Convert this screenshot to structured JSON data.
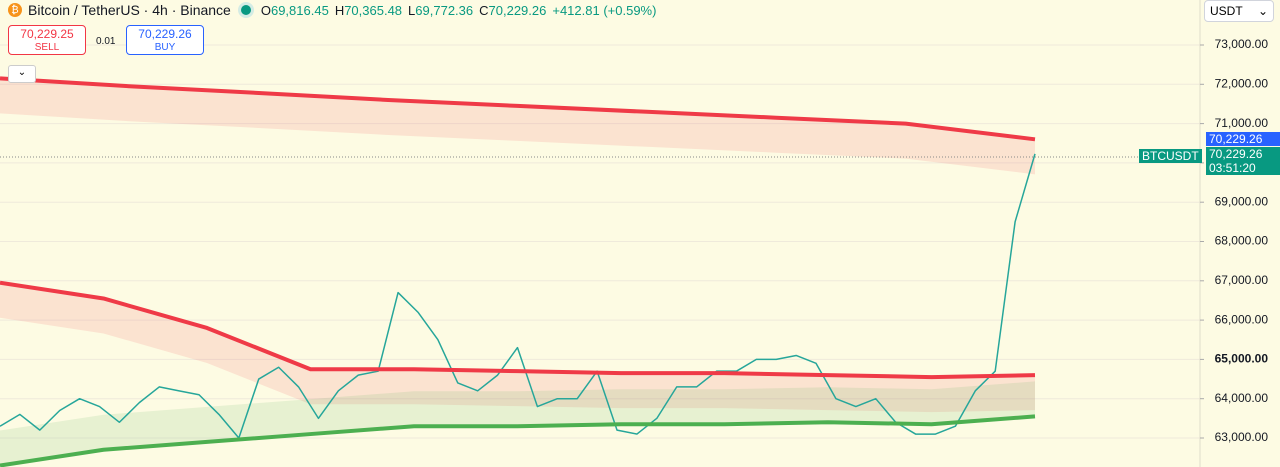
{
  "header": {
    "symbol": "Bitcoin / TetherUS · 4h · Binance",
    "o_key": "O",
    "o": "69,816.45",
    "h_key": "H",
    "h": "70,365.48",
    "l_key": "L",
    "l": "69,772.36",
    "c_key": "C",
    "c": "70,229.26",
    "change": "+412.81 (+0.59%)"
  },
  "trade": {
    "sell_price": "70,229.25",
    "sell_label": "SELL",
    "spread": "0.01",
    "buy_price": "70,229.26",
    "buy_label": "BUY"
  },
  "currency": "USDT",
  "price_tag": {
    "symbol": "BTCUSDT",
    "ask": "70,229.26",
    "last": "70,229.26",
    "countdown": "03:51:20"
  },
  "chart_data": {
    "type": "line",
    "ylim": [
      62262,
      74145
    ],
    "yticks": [
      {
        "value": 73000,
        "label": "73,000.00"
      },
      {
        "value": 72000,
        "label": "72,000.00"
      },
      {
        "value": 71000,
        "label": "71,000.00"
      },
      {
        "value": 70000,
        "label": "70,000.00"
      },
      {
        "value": 69000,
        "label": "69,000.00"
      },
      {
        "value": 68000,
        "label": "68,000.00"
      },
      {
        "value": 67000,
        "label": "67,000.00"
      },
      {
        "value": 66000,
        "label": "66,000.00"
      },
      {
        "value": 65000,
        "label": "65,000.00"
      },
      {
        "value": 64000,
        "label": "64,000.00"
      },
      {
        "value": 63000,
        "label": "63,000.00"
      }
    ],
    "series": [
      {
        "color": "#26a69a",
        "values": [
          63300,
          63600,
          63200,
          63700,
          64000,
          63800,
          63400,
          63900,
          64300,
          64200,
          64100,
          63600,
          63000,
          64500,
          64800,
          64300,
          63500,
          64200,
          64600,
          64700,
          66700,
          66200,
          65500,
          64400,
          64200,
          64600,
          65300,
          63800,
          64000,
          64000,
          64700,
          63200,
          63100,
          63500,
          64300,
          64300,
          64700,
          64700,
          65000,
          65000,
          65100,
          64900,
          64000,
          63800,
          64000,
          63400,
          63100,
          63100,
          63300,
          64200,
          64700,
          68500,
          70229.26
        ]
      },
      {
        "color": "#ef3a47",
        "values": [
          72150,
          71950,
          71780,
          71600,
          71450,
          71300,
          71150,
          71000,
          70600
        ]
      },
      {
        "color": "#ef3a47",
        "values": [
          66950,
          66550,
          65800,
          64750,
          64750,
          64700,
          64650,
          64650,
          64600,
          64550,
          64600
        ]
      },
      {
        "color": "#4caf50",
        "values": [
          62300,
          62700,
          62900,
          63100,
          63300,
          63300,
          63350,
          63350,
          63400,
          63350,
          63550
        ]
      }
    ]
  }
}
